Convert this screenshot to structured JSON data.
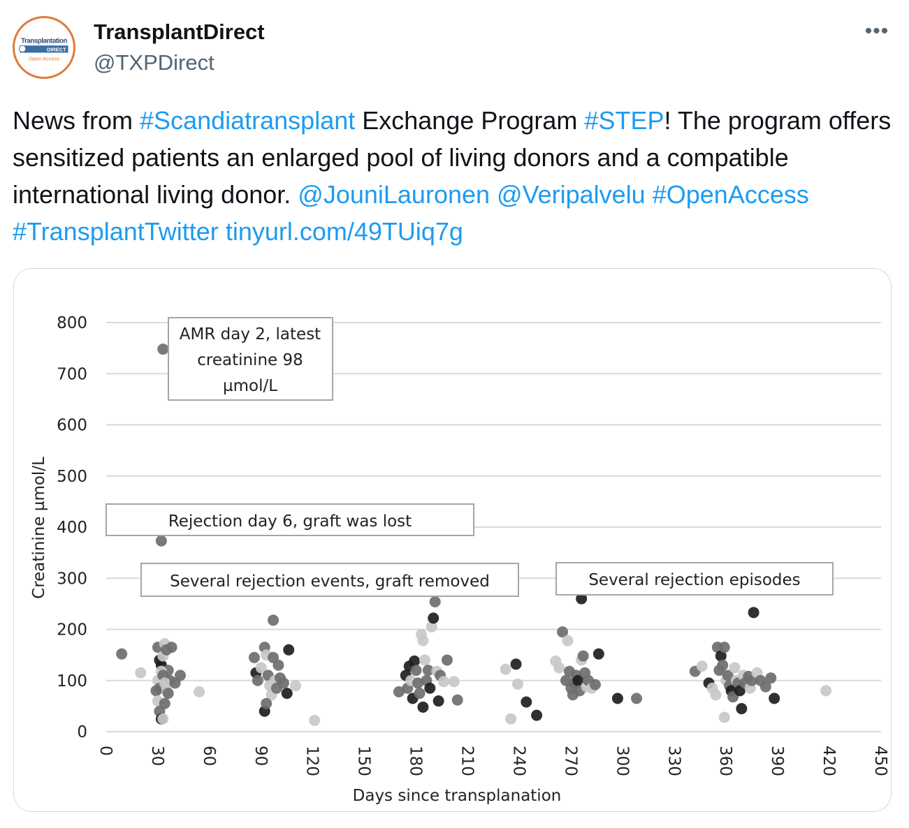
{
  "author": {
    "display_name": "TransplantDirect",
    "handle": "@TXPDirect",
    "avatar_text_top": "Transplantation",
    "avatar_text_mid": "DIRECT",
    "avatar_text_bottom": "Open Access"
  },
  "menu": {
    "more_label": "•••"
  },
  "tweet": {
    "segments": [
      {
        "text": "News from ",
        "link": false
      },
      {
        "text": "#Scandiatransplant",
        "link": true
      },
      {
        "text": " Exchange Program ",
        "link": false
      },
      {
        "text": "#STEP",
        "link": true
      },
      {
        "text": "! The program offers sensitized patients an enlarged pool of living donors and a compatible international living donor. ",
        "link": false
      },
      {
        "text": "@JouniLauronen",
        "link": true
      },
      {
        "text": " ",
        "link": false
      },
      {
        "text": "@Veripalvelu",
        "link": true
      },
      {
        "text": " ",
        "link": false
      },
      {
        "text": "#OpenAccess",
        "link": true
      },
      {
        "text": " ",
        "link": false
      },
      {
        "text": "#TransplantTwitter",
        "link": true
      },
      {
        "text": " ",
        "link": false
      },
      {
        "text": "tinyurl.com/49TUiq7g",
        "link": true
      }
    ]
  },
  "colors": {
    "link": "#1d9bf0",
    "text": "#0f1419",
    "muted": "#536471",
    "avatar_ring": "#e07b39"
  },
  "chart_data": {
    "type": "scatter",
    "xlabel": "Days since transplanation",
    "ylabel": "Creatinine µmol/L",
    "xlim": [
      0,
      450
    ],
    "ylim": [
      0,
      800
    ],
    "xticks": [
      0,
      30,
      60,
      90,
      120,
      150,
      180,
      210,
      240,
      270,
      300,
      330,
      360,
      390,
      420,
      450
    ],
    "yticks": [
      0,
      100,
      200,
      300,
      400,
      500,
      600,
      700,
      800
    ],
    "grid": "horizontal",
    "annotations": [
      {
        "text": [
          "AMR day 2, latest",
          "creatinine 98",
          "µmol/L"
        ]
      },
      {
        "text": [
          "Rejection day 6, graft was lost"
        ]
      },
      {
        "text": [
          "Several rejection events, graft removed"
        ]
      },
      {
        "text": [
          "Several rejection episodes"
        ]
      }
    ],
    "points": [
      {
        "x": 9,
        "y": 152,
        "shade": "mid"
      },
      {
        "x": 20,
        "y": 115,
        "shade": "light"
      },
      {
        "x": 30,
        "y": 165,
        "shade": "mid"
      },
      {
        "x": 31,
        "y": 140,
        "shade": "dark"
      },
      {
        "x": 32,
        "y": 130,
        "shade": "dark"
      },
      {
        "x": 33,
        "y": 148,
        "shade": "light"
      },
      {
        "x": 34,
        "y": 172,
        "shade": "light"
      },
      {
        "x": 35,
        "y": 160,
        "shade": "mid"
      },
      {
        "x": 36,
        "y": 120,
        "shade": "mid"
      },
      {
        "x": 37,
        "y": 100,
        "shade": "mid"
      },
      {
        "x": 38,
        "y": 165,
        "shade": "mid"
      },
      {
        "x": 30,
        "y": 100,
        "shade": "light"
      },
      {
        "x": 31,
        "y": 85,
        "shade": "mid"
      },
      {
        "x": 32,
        "y": 118,
        "shade": "light"
      },
      {
        "x": 33,
        "y": 110,
        "shade": "mid"
      },
      {
        "x": 34,
        "y": 95,
        "shade": "light"
      },
      {
        "x": 35,
        "y": 80,
        "shade": "light"
      },
      {
        "x": 36,
        "y": 75,
        "shade": "mid"
      },
      {
        "x": 29,
        "y": 80,
        "shade": "mid"
      },
      {
        "x": 30,
        "y": 60,
        "shade": "light"
      },
      {
        "x": 31,
        "y": 40,
        "shade": "mid"
      },
      {
        "x": 32,
        "y": 25,
        "shade": "dark"
      },
      {
        "x": 33,
        "y": 25,
        "shade": "light"
      },
      {
        "x": 34,
        "y": 55,
        "shade": "mid"
      },
      {
        "x": 40,
        "y": 95,
        "shade": "mid"
      },
      {
        "x": 43,
        "y": 110,
        "shade": "mid"
      },
      {
        "x": 54,
        "y": 78,
        "shade": "light"
      },
      {
        "x": 33,
        "y": 748,
        "shade": "mid"
      },
      {
        "x": 32,
        "y": 373,
        "shade": "mid"
      },
      {
        "x": 86,
        "y": 145,
        "shade": "mid"
      },
      {
        "x": 87,
        "y": 115,
        "shade": "dark"
      },
      {
        "x": 88,
        "y": 100,
        "shade": "mid"
      },
      {
        "x": 90,
        "y": 125,
        "shade": "light"
      },
      {
        "x": 92,
        "y": 165,
        "shade": "mid"
      },
      {
        "x": 93,
        "y": 150,
        "shade": "light"
      },
      {
        "x": 94,
        "y": 110,
        "shade": "mid"
      },
      {
        "x": 95,
        "y": 90,
        "shade": "light"
      },
      {
        "x": 96,
        "y": 72,
        "shade": "light"
      },
      {
        "x": 97,
        "y": 145,
        "shade": "mid"
      },
      {
        "x": 98,
        "y": 100,
        "shade": "light"
      },
      {
        "x": 99,
        "y": 85,
        "shade": "mid"
      },
      {
        "x": 100,
        "y": 130,
        "shade": "mid"
      },
      {
        "x": 101,
        "y": 105,
        "shade": "mid"
      },
      {
        "x": 103,
        "y": 95,
        "shade": "mid"
      },
      {
        "x": 105,
        "y": 75,
        "shade": "dark"
      },
      {
        "x": 106,
        "y": 160,
        "shade": "dark"
      },
      {
        "x": 110,
        "y": 90,
        "shade": "light"
      },
      {
        "x": 97,
        "y": 218,
        "shade": "mid"
      },
      {
        "x": 92,
        "y": 40,
        "shade": "dark"
      },
      {
        "x": 93,
        "y": 55,
        "shade": "mid"
      },
      {
        "x": 121,
        "y": 22,
        "shade": "light"
      },
      {
        "x": 170,
        "y": 78,
        "shade": "mid"
      },
      {
        "x": 174,
        "y": 110,
        "shade": "dark"
      },
      {
        "x": 175,
        "y": 85,
        "shade": "mid"
      },
      {
        "x": 176,
        "y": 128,
        "shade": "dark"
      },
      {
        "x": 177,
        "y": 100,
        "shade": "light"
      },
      {
        "x": 178,
        "y": 65,
        "shade": "dark"
      },
      {
        "x": 179,
        "y": 138,
        "shade": "dark"
      },
      {
        "x": 180,
        "y": 120,
        "shade": "mid"
      },
      {
        "x": 181,
        "y": 95,
        "shade": "mid"
      },
      {
        "x": 182,
        "y": 75,
        "shade": "mid"
      },
      {
        "x": 183,
        "y": 190,
        "shade": "light"
      },
      {
        "x": 184,
        "y": 178,
        "shade": "light"
      },
      {
        "x": 185,
        "y": 140,
        "shade": "light"
      },
      {
        "x": 186,
        "y": 100,
        "shade": "mid"
      },
      {
        "x": 187,
        "y": 120,
        "shade": "mid"
      },
      {
        "x": 188,
        "y": 85,
        "shade": "dark"
      },
      {
        "x": 189,
        "y": 205,
        "shade": "light"
      },
      {
        "x": 190,
        "y": 222,
        "shade": "dark"
      },
      {
        "x": 191,
        "y": 254,
        "shade": "mid"
      },
      {
        "x": 192,
        "y": 118,
        "shade": "light"
      },
      {
        "x": 193,
        "y": 60,
        "shade": "dark"
      },
      {
        "x": 194,
        "y": 110,
        "shade": "mid"
      },
      {
        "x": 196,
        "y": 98,
        "shade": "light"
      },
      {
        "x": 198,
        "y": 140,
        "shade": "mid"
      },
      {
        "x": 184,
        "y": 48,
        "shade": "dark"
      },
      {
        "x": 202,
        "y": 98,
        "shade": "light"
      },
      {
        "x": 204,
        "y": 62,
        "shade": "mid"
      },
      {
        "x": 232,
        "y": 122,
        "shade": "light"
      },
      {
        "x": 235,
        "y": 25,
        "shade": "light"
      },
      {
        "x": 238,
        "y": 132,
        "shade": "dark"
      },
      {
        "x": 239,
        "y": 93,
        "shade": "light"
      },
      {
        "x": 244,
        "y": 58,
        "shade": "dark"
      },
      {
        "x": 250,
        "y": 32,
        "shade": "dark"
      },
      {
        "x": 261,
        "y": 138,
        "shade": "light"
      },
      {
        "x": 263,
        "y": 125,
        "shade": "light"
      },
      {
        "x": 265,
        "y": 195,
        "shade": "mid"
      },
      {
        "x": 267,
        "y": 100,
        "shade": "mid"
      },
      {
        "x": 268,
        "y": 178,
        "shade": "light"
      },
      {
        "x": 269,
        "y": 118,
        "shade": "mid"
      },
      {
        "x": 270,
        "y": 85,
        "shade": "mid"
      },
      {
        "x": 271,
        "y": 72,
        "shade": "mid"
      },
      {
        "x": 272,
        "y": 95,
        "shade": "mid"
      },
      {
        "x": 273,
        "y": 110,
        "shade": "mid"
      },
      {
        "x": 274,
        "y": 100,
        "shade": "dark"
      },
      {
        "x": 275,
        "y": 80,
        "shade": "mid"
      },
      {
        "x": 276,
        "y": 140,
        "shade": "light"
      },
      {
        "x": 277,
        "y": 148,
        "shade": "mid"
      },
      {
        "x": 278,
        "y": 115,
        "shade": "mid"
      },
      {
        "x": 279,
        "y": 88,
        "shade": "light"
      },
      {
        "x": 280,
        "y": 100,
        "shade": "mid"
      },
      {
        "x": 282,
        "y": 85,
        "shade": "light"
      },
      {
        "x": 284,
        "y": 92,
        "shade": "mid"
      },
      {
        "x": 286,
        "y": 152,
        "shade": "dark"
      },
      {
        "x": 276,
        "y": 260,
        "shade": "dark"
      },
      {
        "x": 297,
        "y": 65,
        "shade": "dark"
      },
      {
        "x": 308,
        "y": 65,
        "shade": "mid"
      },
      {
        "x": 342,
        "y": 118,
        "shade": "mid"
      },
      {
        "x": 346,
        "y": 128,
        "shade": "light"
      },
      {
        "x": 350,
        "y": 95,
        "shade": "dark"
      },
      {
        "x": 352,
        "y": 85,
        "shade": "light"
      },
      {
        "x": 354,
        "y": 72,
        "shade": "light"
      },
      {
        "x": 355,
        "y": 165,
        "shade": "mid"
      },
      {
        "x": 356,
        "y": 120,
        "shade": "mid"
      },
      {
        "x": 357,
        "y": 148,
        "shade": "dark"
      },
      {
        "x": 358,
        "y": 130,
        "shade": "mid"
      },
      {
        "x": 359,
        "y": 165,
        "shade": "mid"
      },
      {
        "x": 360,
        "y": 100,
        "shade": "light"
      },
      {
        "x": 361,
        "y": 110,
        "shade": "mid"
      },
      {
        "x": 362,
        "y": 90,
        "shade": "mid"
      },
      {
        "x": 363,
        "y": 80,
        "shade": "dark"
      },
      {
        "x": 364,
        "y": 68,
        "shade": "mid"
      },
      {
        "x": 365,
        "y": 125,
        "shade": "light"
      },
      {
        "x": 366,
        "y": 100,
        "shade": "light"
      },
      {
        "x": 367,
        "y": 95,
        "shade": "mid"
      },
      {
        "x": 368,
        "y": 80,
        "shade": "dark"
      },
      {
        "x": 370,
        "y": 110,
        "shade": "light"
      },
      {
        "x": 371,
        "y": 95,
        "shade": "mid"
      },
      {
        "x": 373,
        "y": 108,
        "shade": "mid"
      },
      {
        "x": 374,
        "y": 85,
        "shade": "light"
      },
      {
        "x": 375,
        "y": 100,
        "shade": "mid"
      },
      {
        "x": 376,
        "y": 233,
        "shade": "dark"
      },
      {
        "x": 378,
        "y": 115,
        "shade": "light"
      },
      {
        "x": 380,
        "y": 100,
        "shade": "mid"
      },
      {
        "x": 383,
        "y": 88,
        "shade": "mid"
      },
      {
        "x": 386,
        "y": 105,
        "shade": "mid"
      },
      {
        "x": 388,
        "y": 65,
        "shade": "dark"
      },
      {
        "x": 369,
        "y": 45,
        "shade": "dark"
      },
      {
        "x": 359,
        "y": 28,
        "shade": "light"
      },
      {
        "x": 418,
        "y": 80,
        "shade": "light"
      }
    ]
  }
}
